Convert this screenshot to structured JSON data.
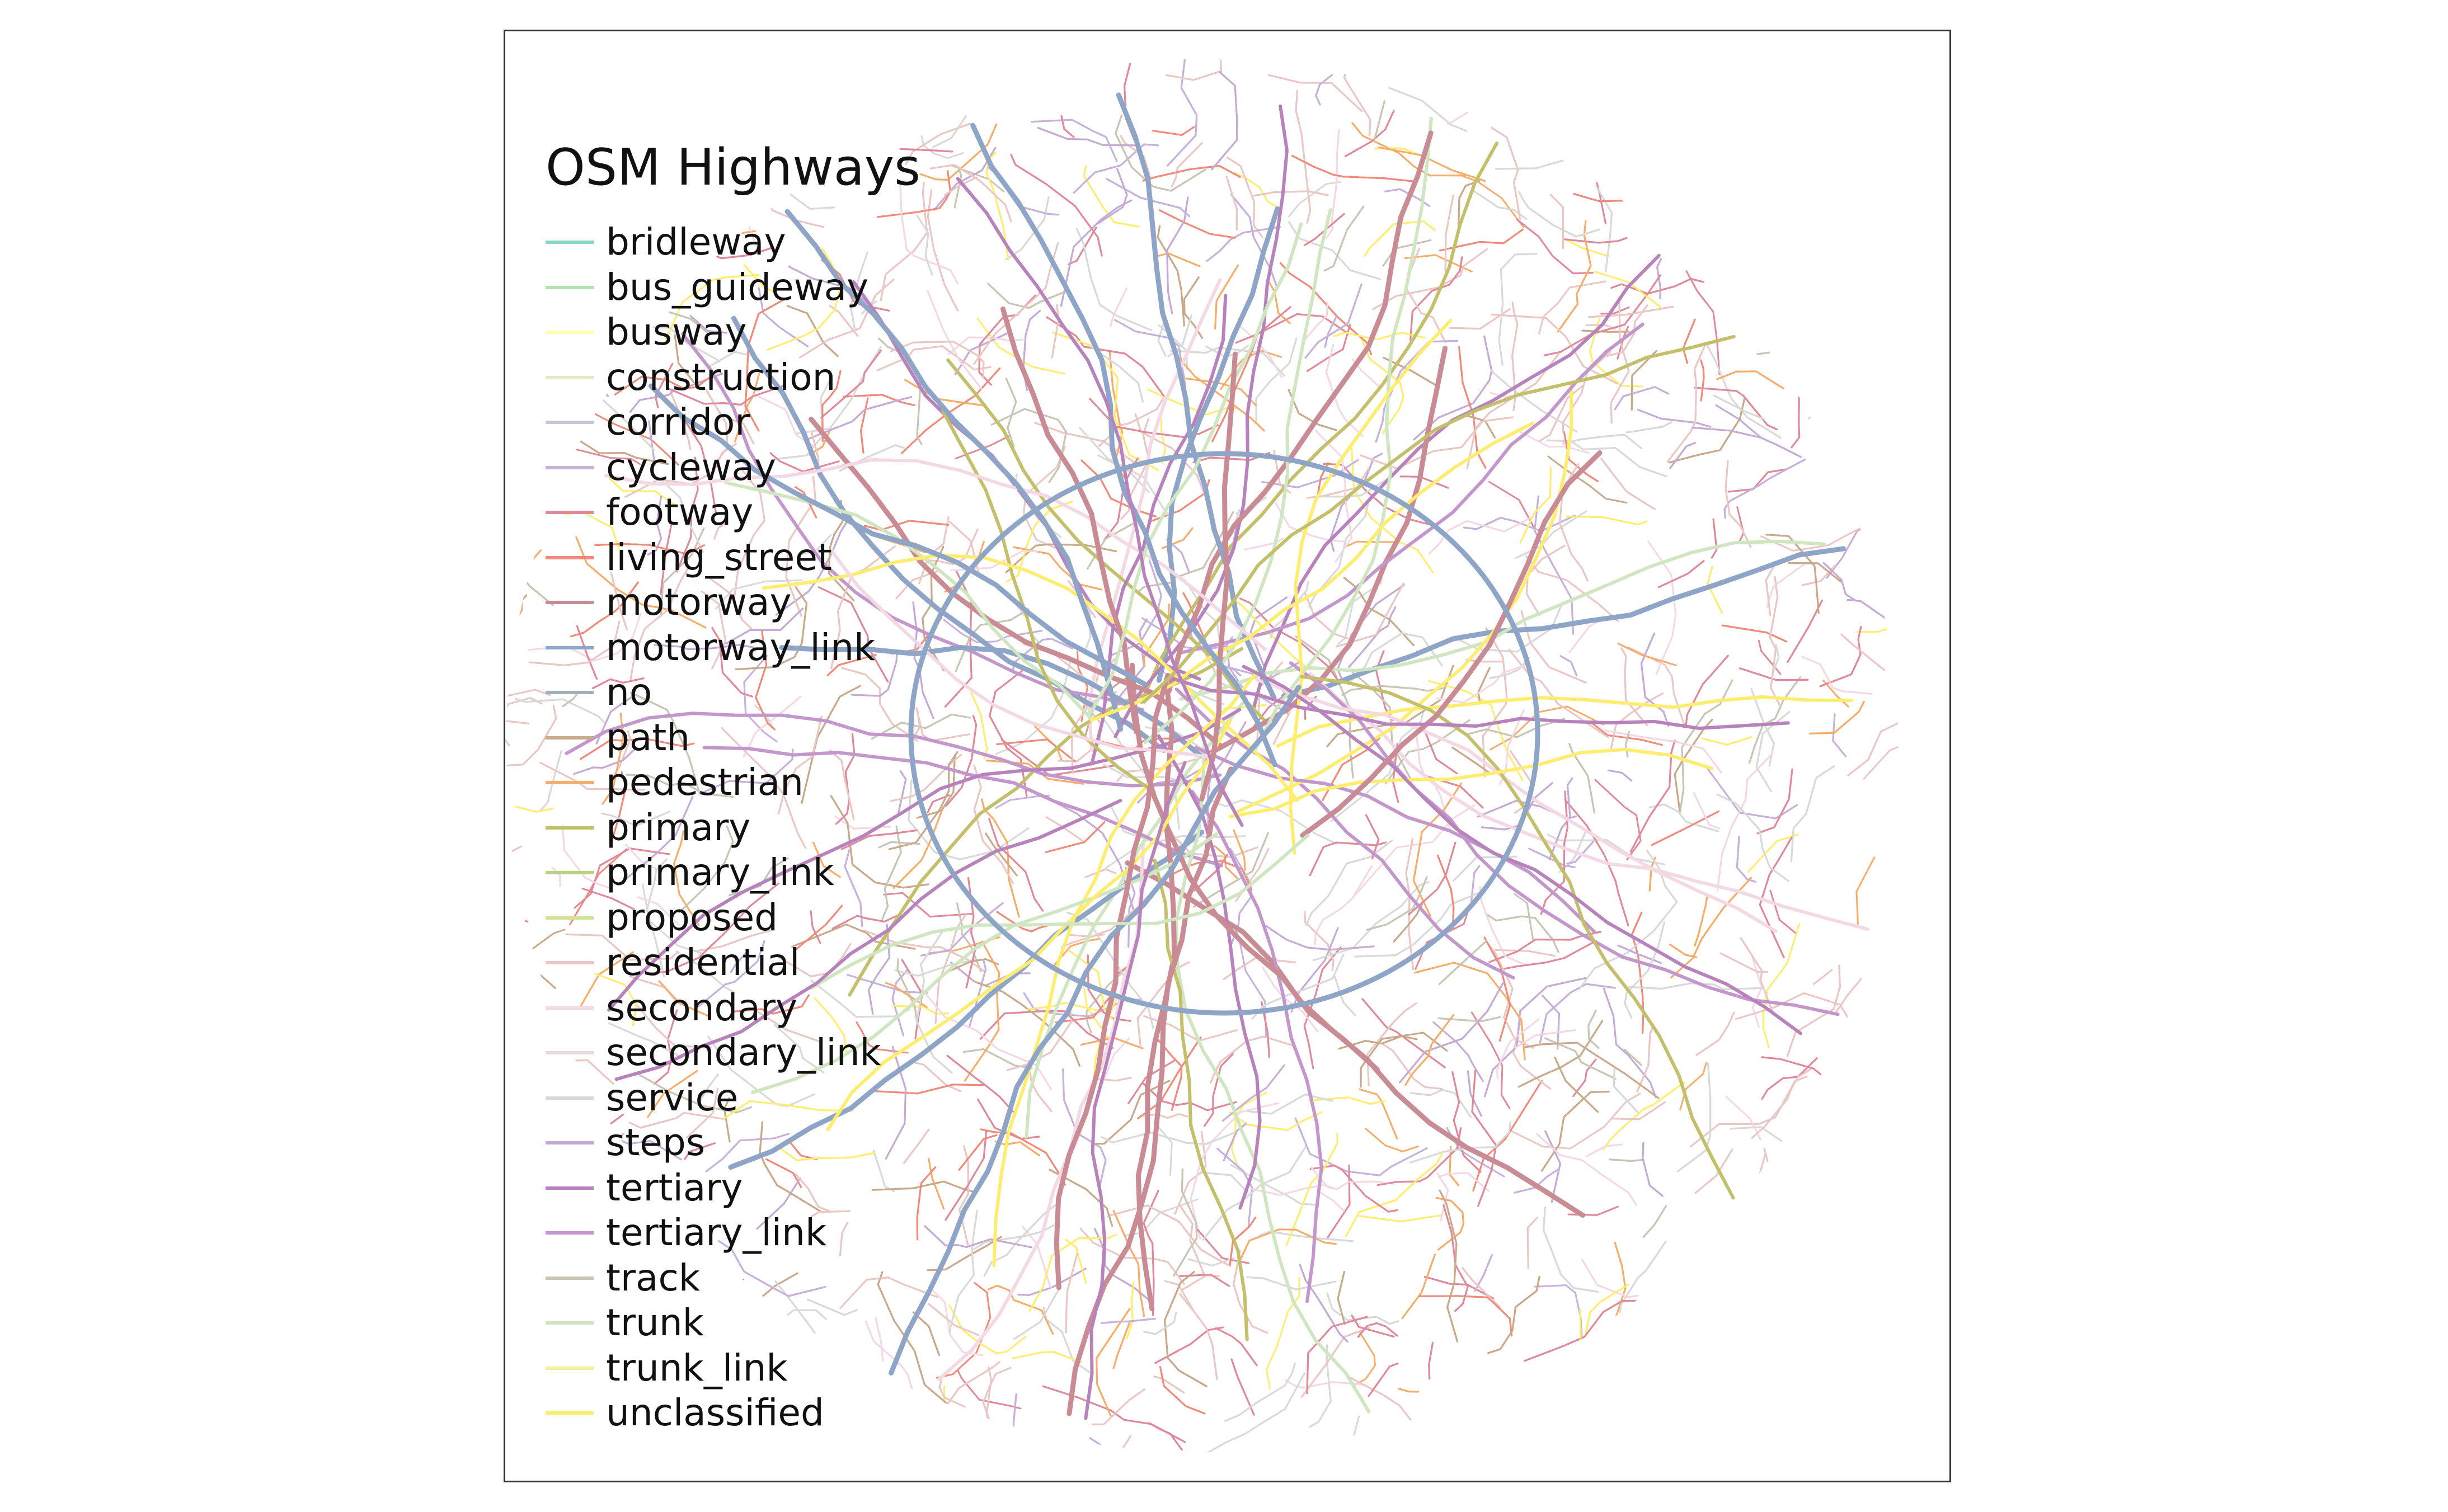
{
  "legend": {
    "title": "OSM Highways",
    "items": [
      {
        "label": "bridleway",
        "color": "#8dd3c7"
      },
      {
        "label": "bus_guideway",
        "color": "#b3e2b0"
      },
      {
        "label": "busway",
        "color": "#ffffb3"
      },
      {
        "label": "construction",
        "color": "#e5e8c4"
      },
      {
        "label": "corridor",
        "color": "#c8c6d8"
      },
      {
        "label": "cycleway",
        "color": "#c7b0dc"
      },
      {
        "label": "footway",
        "color": "#e0899a"
      },
      {
        "label": "living_street",
        "color": "#f08a7a"
      },
      {
        "label": "motorway",
        "color": "#c98c94"
      },
      {
        "label": "motorway_link",
        "color": "#8fa5c7"
      },
      {
        "label": "no",
        "color": "#9fb1b8"
      },
      {
        "label": "path",
        "color": "#c9a98a"
      },
      {
        "label": "pedestrian",
        "color": "#f7ad6a"
      },
      {
        "label": "primary",
        "color": "#c4bf6a"
      },
      {
        "label": "primary_link",
        "color": "#b9d37a"
      },
      {
        "label": "proposed",
        "color": "#d3e29a"
      },
      {
        "label": "residential",
        "color": "#eac7c4"
      },
      {
        "label": "secondary",
        "color": "#f4d8e4"
      },
      {
        "label": "secondary_link",
        "color": "#e6d9e0"
      },
      {
        "label": "service",
        "color": "#d9d9d9"
      },
      {
        "label": "steps",
        "color": "#c6aad6"
      },
      {
        "label": "tertiary",
        "color": "#b883bd"
      },
      {
        "label": "tertiary_link",
        "color": "#c497cc"
      },
      {
        "label": "track",
        "color": "#c9c5b4"
      },
      {
        "label": "trunk",
        "color": "#cfe6c1"
      },
      {
        "label": "trunk_link",
        "color": "#f2ef9c"
      },
      {
        "label": "unclassified",
        "color": "#ffed6f"
      }
    ]
  }
}
